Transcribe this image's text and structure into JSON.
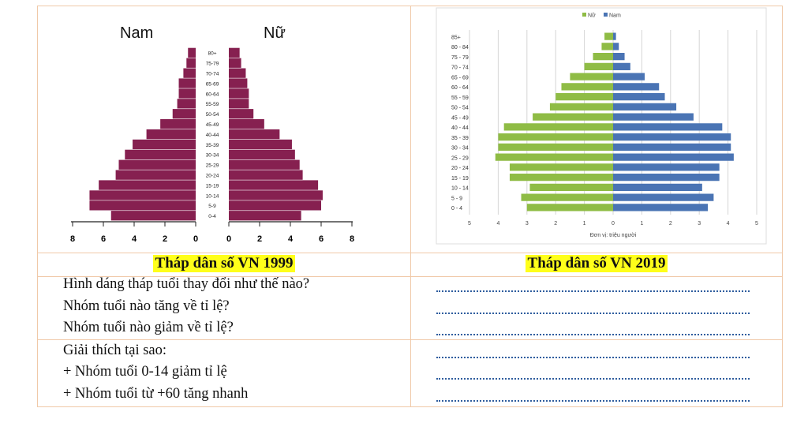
{
  "chart_data": [
    {
      "type": "bar",
      "chart_kind": "population-pyramid",
      "categories": [
        "0-4",
        "5-9",
        "10-14",
        "15-19",
        "20-24",
        "25-29",
        "30-34",
        "35-39",
        "40-44",
        "45-49",
        "50-54",
        "55-59",
        "60-64",
        "65-69",
        "70-74",
        "75-79",
        "80+"
      ],
      "series": [
        {
          "name": "Nam",
          "values": [
            5.5,
            6.9,
            6.9,
            6.3,
            5.2,
            5.0,
            4.6,
            4.1,
            3.2,
            2.3,
            1.5,
            1.2,
            1.1,
            1.1,
            0.8,
            0.6,
            0.5
          ]
        },
        {
          "name": "Nữ",
          "values": [
            4.7,
            6.0,
            6.1,
            5.8,
            4.8,
            4.6,
            4.3,
            4.1,
            3.3,
            2.3,
            1.6,
            1.3,
            1.3,
            1.2,
            1.1,
            0.8,
            0.7
          ]
        }
      ],
      "xlim": [
        0,
        8
      ],
      "ticks": [
        "8",
        "6",
        "4",
        "2",
        "0",
        "0",
        "2",
        "4",
        "6",
        "8"
      ],
      "color": "#862050"
    },
    {
      "type": "bar",
      "chart_kind": "population-pyramid",
      "categories": [
        "0 - 4",
        "5 - 9",
        "10 - 14",
        "15 - 19",
        "20 - 24",
        "25 - 29",
        "30 - 34",
        "35 - 39",
        "40 - 44",
        "45 - 49",
        "50 - 54",
        "55 - 59",
        "60 - 64",
        "65 - 69",
        "70 - 74",
        "75 - 79",
        "80 - 84",
        "85+"
      ],
      "series": [
        {
          "name": "Nữ",
          "values": [
            3.0,
            3.2,
            2.9,
            3.6,
            3.6,
            4.1,
            4.0,
            4.0,
            3.8,
            2.8,
            2.2,
            2.0,
            1.8,
            1.5,
            1.0,
            0.7,
            0.4,
            0.3
          ],
          "color": "#8fbc45"
        },
        {
          "name": "Nam",
          "values": [
            3.3,
            3.5,
            3.1,
            3.7,
            3.7,
            4.2,
            4.1,
            4.1,
            3.8,
            2.8,
            2.2,
            1.8,
            1.6,
            1.1,
            0.6,
            0.4,
            0.2,
            0.1
          ],
          "color": "#4a74b4"
        }
      ],
      "xlim": [
        0,
        5
      ],
      "ticks": [
        "5",
        "4",
        "3",
        "2",
        "1",
        "0",
        "1",
        "2",
        "3",
        "4",
        "5"
      ],
      "xlabel": "Đơn vị: triệu người",
      "legend_position": "top",
      "grid": true
    }
  ],
  "table": {
    "caption_left": "Tháp dân số VN 1999",
    "caption_right": "Tháp dân số VN 2019",
    "questions": [
      "Hình dáng tháp tuổi thay đổi như thế nào?",
      "Nhóm tuổi nào tăng về tỉ lệ?",
      "Nhóm tuổi nào giảm về tỉ lệ?"
    ],
    "explain_title": "Giải thích tại sao:",
    "explain_items": [
      "+ Nhóm tuổi 0-14 giảm tỉ lệ",
      "+ Nhóm tuổi từ +60 tăng nhanh"
    ]
  }
}
